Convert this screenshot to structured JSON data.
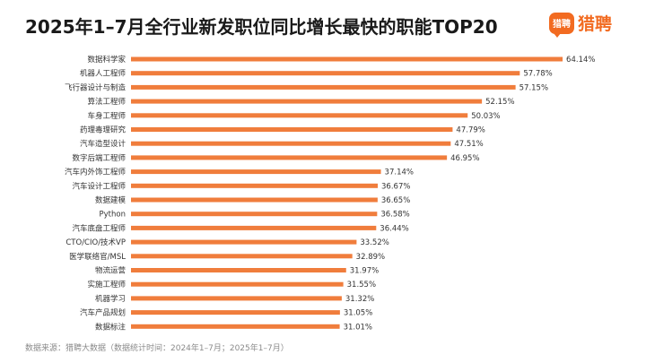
{
  "title": "2025年1–7月全行业新发职位同比增长最快的职能TOP20",
  "logo": {
    "badge_text": "猎聘",
    "text": "猎聘"
  },
  "footer": "数据来源：猎聘大数据（数据统计时间：2024年1–7月；2025年1–7月）",
  "colors": {
    "bar": "#f07d3c",
    "accent": "#f26b21"
  },
  "chart_data": {
    "type": "bar",
    "orientation": "horizontal",
    "title": "2025年1–7月全行业新发职位同比增长最快的职能TOP20",
    "xlabel": "",
    "ylabel": "",
    "categories": [
      "数据科学家",
      "机器人工程师",
      "飞行器设计与制造",
      "算法工程师",
      "车身工程师",
      "药理毒理研究",
      "汽车造型设计",
      "数字后端工程师",
      "汽车内外饰工程师",
      "汽车设计工程师",
      "数据建模",
      "Python",
      "汽车底盘工程师",
      "CTO/CIO/技术VP",
      "医学联络官/MSL",
      "物流运营",
      "实施工程师",
      "机器学习",
      "汽车产品规划",
      "数据标注"
    ],
    "values": [
      64.14,
      57.78,
      57.15,
      52.15,
      50.03,
      47.79,
      47.51,
      46.95,
      37.14,
      36.67,
      36.65,
      36.58,
      36.44,
      33.52,
      32.89,
      31.97,
      31.55,
      31.32,
      31.05,
      31.01
    ],
    "value_labels": [
      "64.14%",
      "57.78%",
      "57.15%",
      "52.15%",
      "50.03%",
      "47.79%",
      "47.51%",
      "46.95%",
      "37.14%",
      "36.67%",
      "36.65%",
      "36.58%",
      "36.44%",
      "33.52%",
      "32.89%",
      "31.97%",
      "31.55%",
      "31.32%",
      "31.05%",
      "31.01%"
    ],
    "xlim": [
      0,
      70
    ],
    "grid": false,
    "legend": "none"
  }
}
